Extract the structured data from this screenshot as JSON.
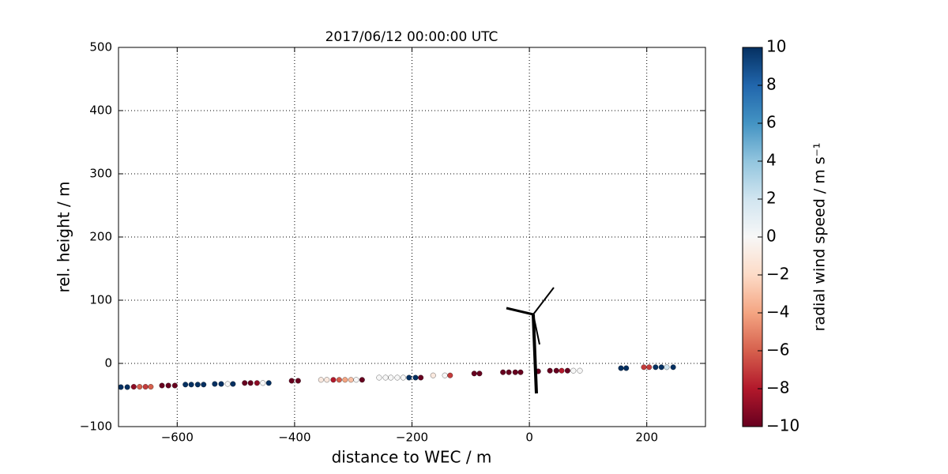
{
  "chart_data": {
    "type": "scatter",
    "title": "2017/06/12 00:00:00 UTC",
    "x_label": "distance to WEC / m",
    "y_label": "rel. height / m",
    "colorbar_label": "radial wind speed / m s⁻¹",
    "colormap": "RdBu",
    "xlim": [
      -700,
      300
    ],
    "ylim": [
      -100,
      500
    ],
    "clim": [
      -10,
      10
    ],
    "xticks": [
      {
        "value": -600,
        "label": "−600"
      },
      {
        "value": -400,
        "label": "−400"
      },
      {
        "value": -200,
        "label": "−200"
      },
      0,
      200
    ],
    "yticks": [
      {
        "value": -100,
        "label": "−100"
      },
      0,
      100,
      200,
      300,
      400,
      500
    ],
    "cticks": [
      {
        "value": -10,
        "label": "−10"
      },
      {
        "value": -8,
        "label": "−8"
      },
      {
        "value": -6,
        "label": "−6"
      },
      {
        "value": -4,
        "label": "−4"
      },
      {
        "value": -2,
        "label": "−2"
      },
      0,
      2,
      4,
      6,
      8,
      10
    ],
    "grid": true,
    "x": [
      -696,
      -685,
      -674,
      -664,
      -654,
      -645,
      -626,
      -615,
      -604,
      -586,
      -576,
      -565,
      -555,
      -536,
      -525,
      -514,
      -505,
      -485,
      -475,
      -464,
      -454,
      -444,
      -405,
      -394,
      -355,
      -345,
      -334,
      -324,
      -314,
      -304,
      -295,
      -285,
      -256,
      -245,
      -236,
      -225,
      -215,
      -205,
      -194,
      -185,
      -164,
      -144,
      -135,
      -94,
      -85,
      -45,
      -35,
      -24,
      -15,
      15,
      35,
      46,
      55,
      65,
      75,
      86,
      156,
      165,
      195,
      204,
      215,
      225,
      234,
      245
    ],
    "values": [
      -37.5,
      -37.5,
      -37,
      -37,
      -37,
      -37,
      -35,
      -35,
      -35,
      -33.5,
      -33.5,
      -33.5,
      -33.5,
      -32.5,
      -32.5,
      -32.5,
      -32.5,
      -31,
      -31,
      -31,
      -31,
      -31,
      -27.5,
      -27.5,
      -26,
      -26,
      -26,
      -26,
      -26,
      -26,
      -26,
      -26,
      -22.5,
      -22.5,
      -22.5,
      -22.5,
      -22.5,
      -22.5,
      -22.5,
      -22.5,
      -19,
      -19,
      -19,
      -16,
      -16,
      -14,
      -14,
      -14,
      -14,
      -12.5,
      -11.5,
      -11.5,
      -11.5,
      -11.5,
      -11.5,
      -11.5,
      -7.5,
      -7.5,
      -6,
      -6,
      -6,
      -6,
      -6,
      -6
    ],
    "c": [
      10,
      10,
      -9,
      -6,
      -7,
      -6,
      -10,
      -10,
      -10,
      10,
      10,
      10,
      10,
      10,
      10,
      0,
      10,
      -10,
      -10,
      -9,
      0,
      10,
      -10,
      -10,
      -1,
      -1,
      -8,
      -6,
      -4,
      -3,
      0,
      -10,
      0,
      0,
      0,
      0,
      0,
      10,
      10,
      -10,
      -1,
      0,
      -7,
      -10,
      -10,
      -10,
      -10,
      -10,
      -10,
      -10,
      -10,
      -10,
      -8,
      -10,
      0,
      0,
      10,
      10,
      -7,
      -7,
      10,
      10,
      2,
      10
    ]
  }
}
